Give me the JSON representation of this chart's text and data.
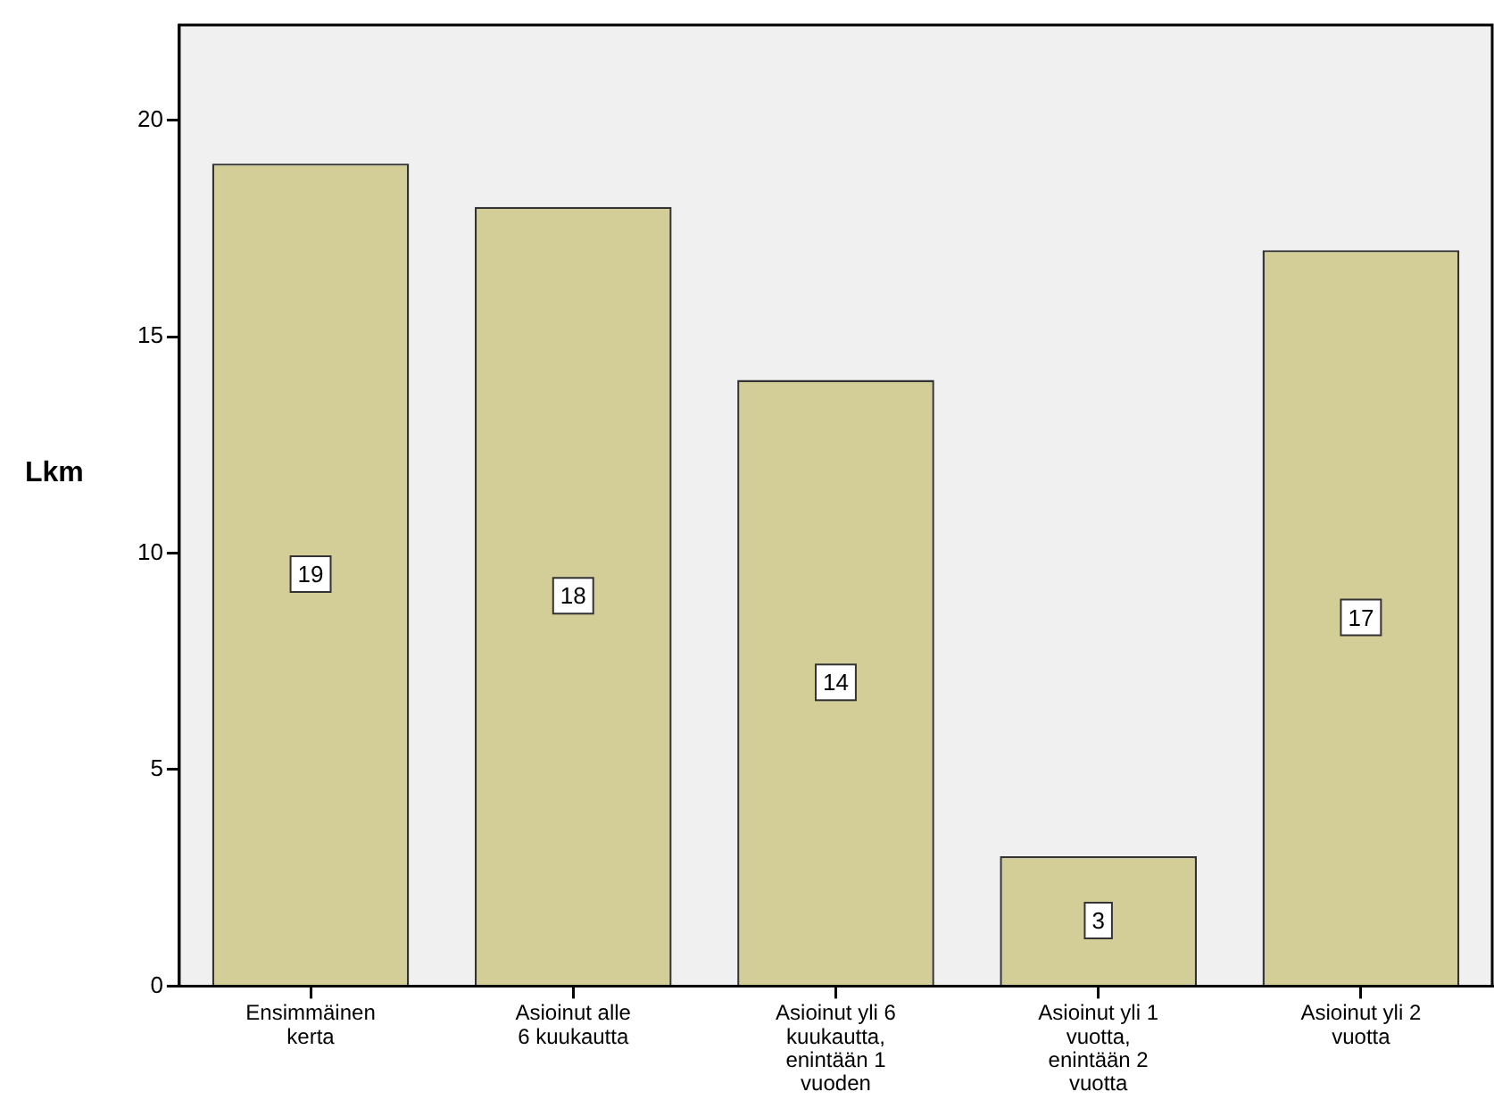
{
  "chart_data": {
    "type": "bar",
    "ylabel": "Lkm",
    "categories": [
      "Ensimmäinen kerta",
      "Asioinut alle 6 kuukautta",
      "Asioinut yli 6 kuukautta, enintään 1 vuoden",
      "Asioinut yli 1 vuotta, enintään 2 vuotta",
      "Asioinut yli 2 vuotta"
    ],
    "values": [
      19,
      18,
      14,
      3,
      17
    ],
    "color": "#d3cd98",
    "ylim": [
      0,
      22.2
    ],
    "yticks": [
      0,
      5,
      10,
      15,
      20
    ],
    "grid": false,
    "legend": false,
    "data_labels": true
  }
}
